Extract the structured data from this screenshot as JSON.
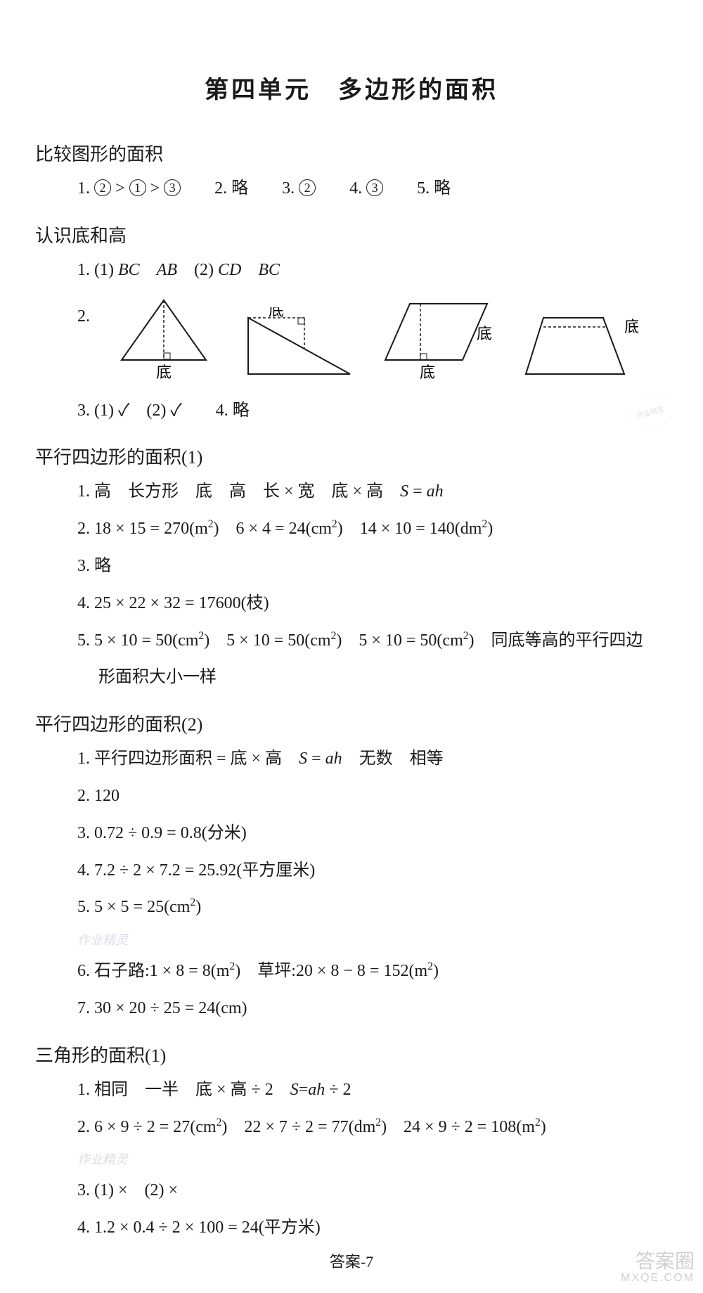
{
  "title": "第四单元　多边形的面积",
  "sections": [
    {
      "heading": "比较图形的面积",
      "lines": [
        {
          "type": "compare",
          "parts": [
            "1. ",
            "②",
            " > ",
            "①",
            " > ",
            "③",
            "　　2. 略　　3. ",
            "②",
            "　　4. ",
            "③",
            "　　5. 略"
          ]
        }
      ]
    },
    {
      "heading": "认识底和高",
      "lines": [
        {
          "type": "plain",
          "html": "1. (1) <span class='italic'>BC</span>　<span class='italic'>AB</span>　(2) <span class='italic'>CD</span>　<span class='italic'>BC</span>"
        },
        {
          "type": "shapes"
        },
        {
          "type": "plain",
          "html": "3. (1) ✓　(2) ✓　　4. 略"
        }
      ]
    },
    {
      "heading": "平行四边形的面积(1)",
      "lines": [
        {
          "type": "plain",
          "html": "1. 高　长方形　底　高　长 × 宽　底 × 高　<span class='italic'>S</span> = <span class='italic'>ah</span>"
        },
        {
          "type": "plain",
          "html": "2. 18 × 15 = 270(m<sup>2</sup>)　6 × 4 = 24(cm<sup>2</sup>)　14 × 10 = 140(dm<sup>2</sup>)"
        },
        {
          "type": "plain",
          "html": "3. 略"
        },
        {
          "type": "plain",
          "html": "4. 25 × 22 × 32 = 17600(枝)"
        },
        {
          "type": "plain",
          "html": "5. 5 × 10 = 50(cm<sup>2</sup>)　5 × 10 = 50(cm<sup>2</sup>)　5 × 10 = 50(cm<sup>2</sup>)　同底等高的平行四边"
        },
        {
          "type": "plain",
          "html": "　 形面积大小一样"
        }
      ]
    },
    {
      "heading": "平行四边形的面积(2)",
      "lines": [
        {
          "type": "plain",
          "html": "1. 平行四边形面积 = 底 × 高　<span class='italic'>S</span> = <span class='italic'>ah</span>　无数　相等"
        },
        {
          "type": "plain",
          "html": "2. 120"
        },
        {
          "type": "plain",
          "html": "3. 0.72 ÷ 0.9 = 0.8(分米)"
        },
        {
          "type": "plain",
          "html": "4. 7.2 ÷ 2 × 7.2 = 25.92(平方厘米)"
        },
        {
          "type": "plain",
          "html": "5. 5 × 5 = 25(cm<sup>2</sup>)"
        },
        {
          "type": "faint",
          "html": "作业精灵"
        },
        {
          "type": "plain",
          "html": "6. 石子路:1 × 8 = 8(m<sup>2</sup>)　草坪:20 × 8 − 8 = 152(m<sup>2</sup>)"
        },
        {
          "type": "plain",
          "html": "7. 30 × 20 ÷ 25 = 24(cm)"
        }
      ]
    },
    {
      "heading": "三角形的面积(1)",
      "lines": [
        {
          "type": "plain",
          "html": "1. 相同　一半　底 × 高 ÷ 2　<span class='italic'>S</span>=<span class='italic'>ah</span> ÷ 2"
        },
        {
          "type": "plain",
          "html": "2. 6 × 9 ÷ 2 = 27(cm<sup>2</sup>)　22 × 7 ÷ 2 = 77(dm<sup>2</sup>)　24 × 9 ÷ 2 = 108(m<sup>2</sup>)"
        },
        {
          "type": "faint",
          "html": "作业精灵"
        },
        {
          "type": "plain",
          "html": "3. (1) ×　(2) ×"
        },
        {
          "type": "plain",
          "html": "4. 1.2 × 0.4 ÷ 2 × 100 = 24(平方米)"
        }
      ]
    }
  ],
  "shapes": {
    "label_bottom": "底",
    "label_side": "底",
    "stroke": "#1a1a1a",
    "dash": "4,3",
    "q_num": "2."
  },
  "footer": "答案-7",
  "watermark": {
    "big": "答案圈",
    "small": "MXQE.COM"
  },
  "stamp_text": "作业精灵",
  "colors": {
    "text": "#1a1a1a",
    "bg": "#ffffff"
  }
}
